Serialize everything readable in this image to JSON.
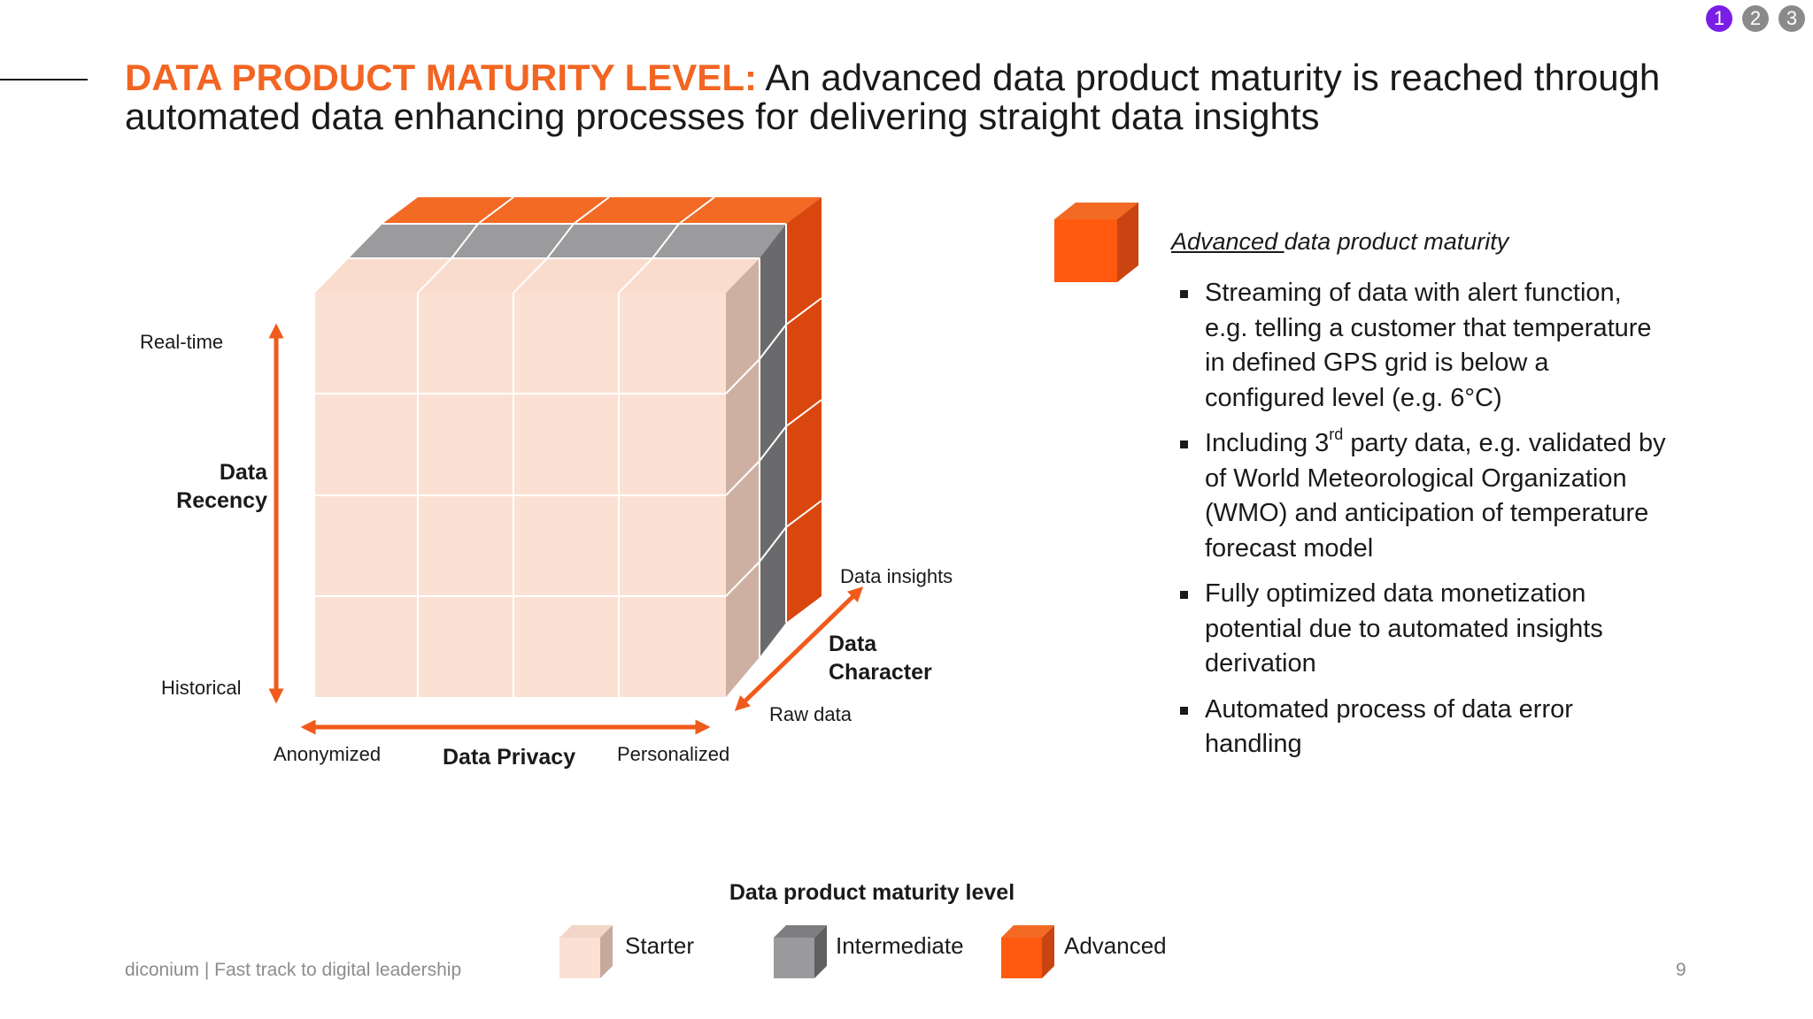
{
  "nav": {
    "dots": [
      {
        "label": "1",
        "active": true
      },
      {
        "label": "2",
        "active": false
      },
      {
        "label": "3",
        "active": false
      }
    ]
  },
  "title": {
    "highlight": "DATA PRODUCT MATURITY LEVEL:",
    "rest": " An advanced data product maturity is reached through automated data enhancing processes for delivering straight data insights"
  },
  "cube": {
    "recency": {
      "top": "Real-time",
      "bottom": "Historical",
      "title_line1": "Data",
      "title_line2": "Recency"
    },
    "privacy": {
      "left": "Anonymized",
      "right": "Personalized",
      "title": "Data Privacy"
    },
    "character": {
      "top": "Data insights",
      "bottom": "Raw data",
      "title_line1": "Data",
      "title_line2": "Character"
    }
  },
  "legend": {
    "title": "Data product maturity level",
    "items": [
      {
        "label": "Starter",
        "color": "#fbe1d4"
      },
      {
        "label": "Intermediate",
        "color": "#9a9a9c"
      },
      {
        "label": "Advanced",
        "color": "#ff5a0f"
      }
    ]
  },
  "details": {
    "heading_underlined": "Advanced ",
    "heading_rest": "data product maturity",
    "bullet1": "Streaming of data with alert function, e.g. telling a customer that temperature in defined GPS grid is below a configured level (e.g. 6°C)",
    "bullet2_pre": "Including 3",
    "bullet2_sup": "rd",
    "bullet2_post": " party data, e.g. validated by of World Meteorological Organization (WMO) and anticipation of temperature forecast model",
    "bullet3": "Fully optimized data monetization potential due to automated insights derivation",
    "bullet4": "Automated process of data error handling"
  },
  "footer": {
    "text": "diconium | Fast track to digital leadership",
    "page": "9"
  },
  "colors": {
    "accent": "#f26522",
    "arrow": "#f05a1a",
    "nav_active": "#7a1ee6",
    "nav_inactive": "#8a8a8a"
  }
}
